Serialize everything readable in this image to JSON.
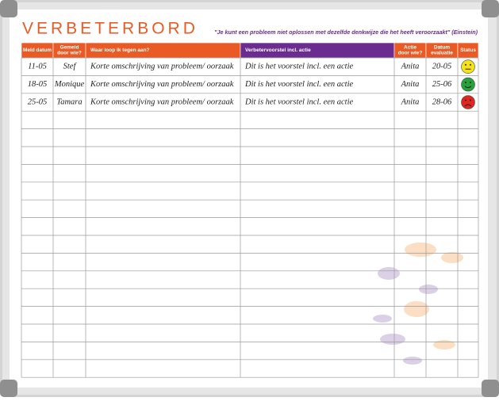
{
  "title": "VERBETERBORD",
  "quote": "\"Je kunt een probleem niet oplossen met dezelfde denkwijze die het heeft veroorzaakt\" (Einstein)",
  "table": {
    "header": [
      [
        "Meld datum"
      ],
      [
        "Gemeld",
        "door wie?"
      ],
      [
        "Waar loop ik tegen aan?"
      ],
      [
        "Verbetervoorstel incl. actie"
      ],
      [
        "Actie",
        "door wie?"
      ],
      [
        "Datum",
        "evaluatie"
      ],
      [
        "Status"
      ]
    ],
    "rows": [
      {
        "cells": [
          "11-05",
          "Stef",
          "Korte omschrijving van probleem/ oorzaak",
          "Dit is het voorstel incl. een actie",
          "Anita",
          "20-05"
        ],
        "status_color": "#f3e21c"
      },
      {
        "cells": [
          "18-05",
          "Monique",
          "Korte omschrijving van probleem/ oorzaak",
          "Dit is het voorstel incl. een actie",
          "Anita",
          "25-06"
        ],
        "status_color": "#27a33c"
      },
      {
        "cells": [
          "25-05",
          "Tamara",
          "Korte omschrijving van probleem/ oorzaak",
          "Dit is het voorstel incl. een actie",
          "Anita",
          "28-06"
        ],
        "status_color": "#e0261f"
      }
    ]
  }
}
